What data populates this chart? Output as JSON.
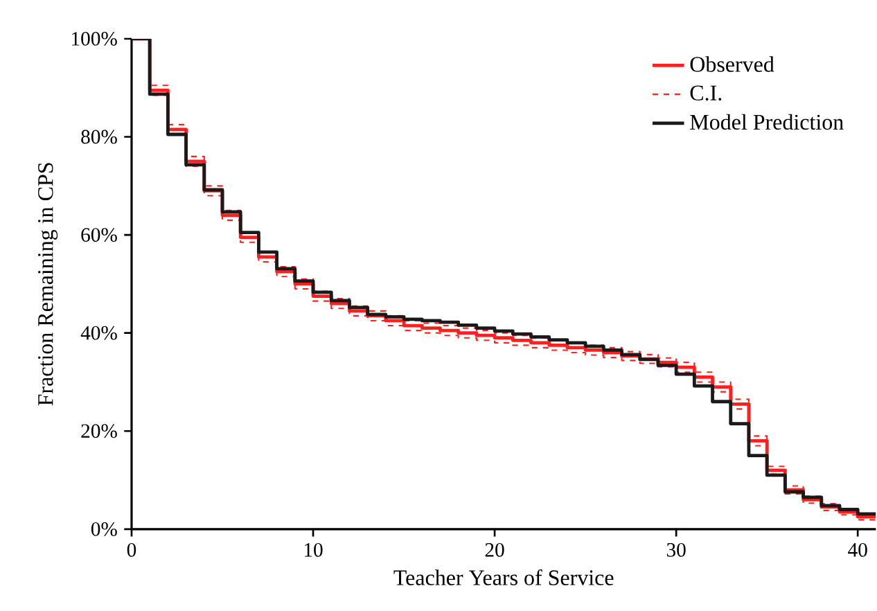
{
  "chart_data": {
    "type": "step",
    "xlabel": "Teacher Years of Service",
    "ylabel": "Fraction Remaining in CPS",
    "x": [
      0,
      1,
      2,
      3,
      4,
      5,
      6,
      7,
      8,
      9,
      10,
      11,
      12,
      13,
      14,
      15,
      16,
      17,
      18,
      19,
      20,
      21,
      22,
      23,
      24,
      25,
      26,
      27,
      28,
      29,
      30,
      31,
      32,
      33,
      34,
      35,
      36,
      37,
      38,
      39,
      40,
      41
    ],
    "series": [
      {
        "name": "Observed",
        "color": "#ff1f1f",
        "line_style": "solid",
        "values": [
          100,
          89.5,
          81.5,
          75,
          69,
          64,
          59.5,
          55.5,
          52.5,
          50,
          47.5,
          46,
          44.5,
          43.5,
          42.5,
          41.5,
          41,
          40.5,
          40,
          39.5,
          39,
          38.5,
          38,
          37.5,
          37,
          36.5,
          36,
          35.3,
          34.7,
          34,
          33,
          31,
          29,
          25.5,
          18,
          12,
          8,
          6,
          4.5,
          3.5,
          2.5,
          2.5
        ]
      },
      {
        "name": "C.I.",
        "color": "#ff1f1f",
        "line_style": "dashed",
        "values": [
          100,
          90.5,
          82.5,
          76,
          70,
          65,
          60.5,
          56.5,
          53.5,
          51,
          48.5,
          47,
          45.5,
          44.5,
          43.5,
          42.5,
          42,
          41.5,
          41,
          40.5,
          40,
          39.5,
          39,
          38.5,
          38,
          37.5,
          37,
          36.2,
          35.6,
          34.9,
          34,
          32,
          30,
          26.5,
          19,
          12.8,
          8.8,
          6.7,
          5.2,
          4.1,
          3.1,
          3.1
        ]
      },
      {
        "color": "#ff1f1f",
        "line_style": "dashed",
        "values": [
          100,
          88.5,
          80.5,
          74,
          68,
          63,
          58.5,
          54.5,
          51.5,
          49,
          46.5,
          45,
          43.5,
          42.5,
          41.5,
          40.5,
          40,
          39.5,
          39,
          38.5,
          38,
          37.5,
          37,
          36.5,
          36,
          35.5,
          35,
          34.4,
          33.8,
          33.1,
          32,
          30,
          28,
          24.5,
          17,
          11.2,
          7.2,
          5.3,
          3.8,
          2.9,
          1.9,
          1.9
        ]
      },
      {
        "name": "Model Prediction",
        "color": "#1a1a1a",
        "line_style": "solid",
        "values": [
          100,
          88.7,
          80.5,
          74.3,
          69.2,
          64.7,
          60.5,
          56.5,
          53.1,
          50.6,
          48.3,
          46.6,
          45.2,
          43.8,
          43.3,
          42.8,
          42.5,
          42.2,
          41.6,
          41,
          40.4,
          39.8,
          39.2,
          38.6,
          38,
          37.3,
          36.5,
          35.6,
          34.6,
          33.4,
          31.6,
          29.2,
          26,
          21.5,
          15,
          11,
          7.6,
          6.5,
          4.8,
          4,
          3.1,
          3.1
        ]
      }
    ],
    "xlim": [
      0,
      41
    ],
    "ylim": [
      0,
      100
    ],
    "xticks": [
      0,
      10,
      20,
      30,
      40
    ],
    "yticks": [
      {
        "value": 0,
        "label": "0%"
      },
      {
        "value": 20,
        "label": "20%"
      },
      {
        "value": 40,
        "label": "40%"
      },
      {
        "value": 60,
        "label": "60%"
      },
      {
        "value": 80,
        "label": "80%"
      },
      {
        "value": 100,
        "label": "100%"
      }
    ],
    "grid": false,
    "legend": "top right"
  }
}
